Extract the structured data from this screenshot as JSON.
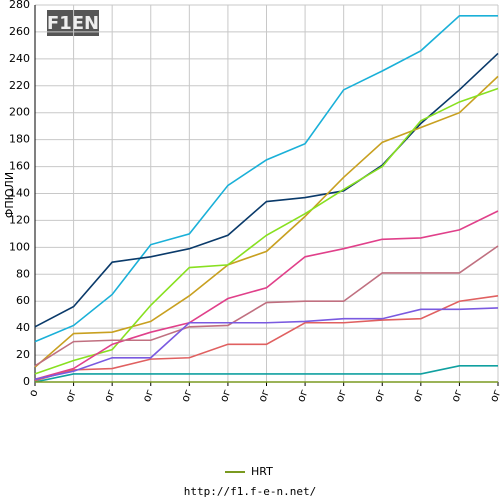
{
  "logo": "F1EN",
  "footer": "http://f1.f-e-n.net/",
  "chart_data": {
    "type": "line",
    "y_label": "ФПЮЛИ",
    "categories": [
      "o",
      "ог",
      "ог",
      "ог",
      "ог",
      "ог",
      "ог",
      "ог",
      "ог",
      "ог",
      "ог",
      "ог",
      "ог"
    ],
    "ylim": [
      0,
      280
    ],
    "yticks": [
      0,
      20,
      40,
      60,
      80,
      100,
      120,
      140,
      160,
      180,
      200,
      220,
      240,
      260,
      280
    ],
    "grid": true,
    "series": [
      {
        "color": "#1ab0d8",
        "values": [
          30,
          42,
          65,
          102,
          110,
          146,
          165,
          177,
          217,
          231,
          246,
          272,
          272
        ]
      },
      {
        "color": "#0a3a6a",
        "values": [
          41,
          56,
          89,
          93,
          99,
          109,
          134,
          137,
          142,
          161,
          192,
          217,
          244
        ]
      },
      {
        "color": "#c8a020",
        "values": [
          11,
          36,
          37,
          45,
          64,
          87,
          97,
          123,
          152,
          178,
          189,
          200,
          227
        ]
      },
      {
        "color": "#88e020",
        "values": [
          6,
          16,
          24,
          57,
          85,
          87,
          109,
          125,
          143,
          160,
          194,
          208,
          218
        ]
      },
      {
        "color": "#e0408a",
        "values": [
          2,
          10,
          28,
          37,
          44,
          62,
          70,
          93,
          99,
          106,
          107,
          113,
          127
        ]
      },
      {
        "color": "#c07080",
        "values": [
          12,
          30,
          31,
          31,
          41,
          42,
          59,
          60,
          60,
          81,
          81,
          81,
          101
        ]
      },
      {
        "color": "#e06060",
        "values": [
          1,
          9,
          10,
          17,
          18,
          28,
          28,
          44,
          44,
          46,
          47,
          60,
          64
        ]
      },
      {
        "color": "#7a5ae0",
        "values": [
          2,
          8,
          18,
          18,
          44,
          44,
          44,
          45,
          47,
          47,
          54,
          54,
          55
        ]
      },
      {
        "color": "#10a0a0",
        "values": [
          0,
          6,
          6,
          6,
          6,
          6,
          6,
          6,
          6,
          6,
          6,
          12,
          12
        ]
      },
      {
        "name": "HRT",
        "color": "#7a9a20",
        "values": [
          0,
          0,
          0,
          0,
          0,
          0,
          0,
          0,
          0,
          0,
          0,
          0,
          0
        ]
      }
    ]
  }
}
